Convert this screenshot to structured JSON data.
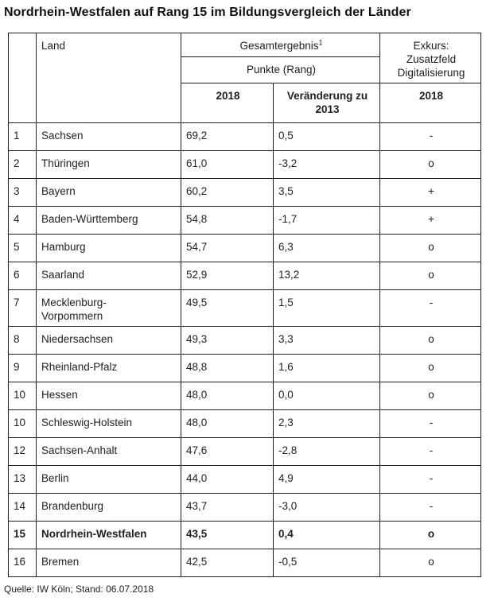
{
  "title": "Nordrhein-Westfalen auf Rang 15 im Bildungsvergleich der Länder",
  "colors": {
    "text": "#1a1a1a",
    "border": "#1f1f1f",
    "background": "#ffffff"
  },
  "table": {
    "header": {
      "land": "Land",
      "gesamtergebnis": "Gesamtergebnis",
      "gesamtergebnis_footnote": "1",
      "punkte_rang": "Punkte (Rang)",
      "year_2018": "2018",
      "veraenderung": "Veränderung zu\n2013",
      "exkurs": "Exkurs:\nZusatzfeld\nDigitalisierung",
      "exkurs_2018": "2018"
    },
    "rows": [
      {
        "rank": "1",
        "land": "Sachsen",
        "punkte": "69,2",
        "veraenderung": "0,5",
        "digitalisierung": "-",
        "bold": false
      },
      {
        "rank": "2",
        "land": "Thüringen",
        "punkte": "61,0",
        "veraenderung": "-3,2",
        "digitalisierung": "o",
        "bold": false
      },
      {
        "rank": "3",
        "land": "Bayern",
        "punkte": "60,2",
        "veraenderung": "3,5",
        "digitalisierung": "+",
        "bold": false
      },
      {
        "rank": "4",
        "land": "Baden-Württemberg",
        "punkte": "54,8",
        "veraenderung": "-1,7",
        "digitalisierung": "+",
        "bold": false
      },
      {
        "rank": "5",
        "land": "Hamburg",
        "punkte": "54,7",
        "veraenderung": "6,3",
        "digitalisierung": "o",
        "bold": false
      },
      {
        "rank": "6",
        "land": "Saarland",
        "punkte": "52,9",
        "veraenderung": "13,2",
        "digitalisierung": "o",
        "bold": false
      },
      {
        "rank": "7",
        "land": "Mecklenburg-\nVorpommern",
        "punkte": "49,5",
        "veraenderung": "1,5",
        "digitalisierung": "-",
        "bold": false
      },
      {
        "rank": "8",
        "land": "Niedersachsen",
        "punkte": "49,3",
        "veraenderung": "3,3",
        "digitalisierung": "o",
        "bold": false
      },
      {
        "rank": "9",
        "land": "Rheinland-Pfalz",
        "punkte": "48,8",
        "veraenderung": "1,6",
        "digitalisierung": "o",
        "bold": false
      },
      {
        "rank": "10",
        "land": "Hessen",
        "punkte": "48,0",
        "veraenderung": "0,0",
        "digitalisierung": "o",
        "bold": false
      },
      {
        "rank": "10",
        "land": "Schleswig-Holstein",
        "punkte": "48,0",
        "veraenderung": "2,3",
        "digitalisierung": "-",
        "bold": false
      },
      {
        "rank": "12",
        "land": "Sachsen-Anhalt",
        "punkte": "47,6",
        "veraenderung": "-2,8",
        "digitalisierung": "-",
        "bold": false
      },
      {
        "rank": "13",
        "land": "Berlin",
        "punkte": "44,0",
        "veraenderung": "4,9",
        "digitalisierung": "-",
        "bold": false
      },
      {
        "rank": "14",
        "land": "Brandenburg",
        "punkte": "43,7",
        "veraenderung": "-3,0",
        "digitalisierung": "-",
        "bold": false
      },
      {
        "rank": "15",
        "land": "Nordrhein-Westfalen",
        "punkte": "43,5",
        "veraenderung": "0,4",
        "digitalisierung": "o",
        "bold": true
      },
      {
        "rank": "16",
        "land": "Bremen",
        "punkte": "42,5",
        "veraenderung": "-0,5",
        "digitalisierung": "o",
        "bold": false
      }
    ]
  },
  "source": "Quelle: IW Köln; Stand: 06.07.2018"
}
